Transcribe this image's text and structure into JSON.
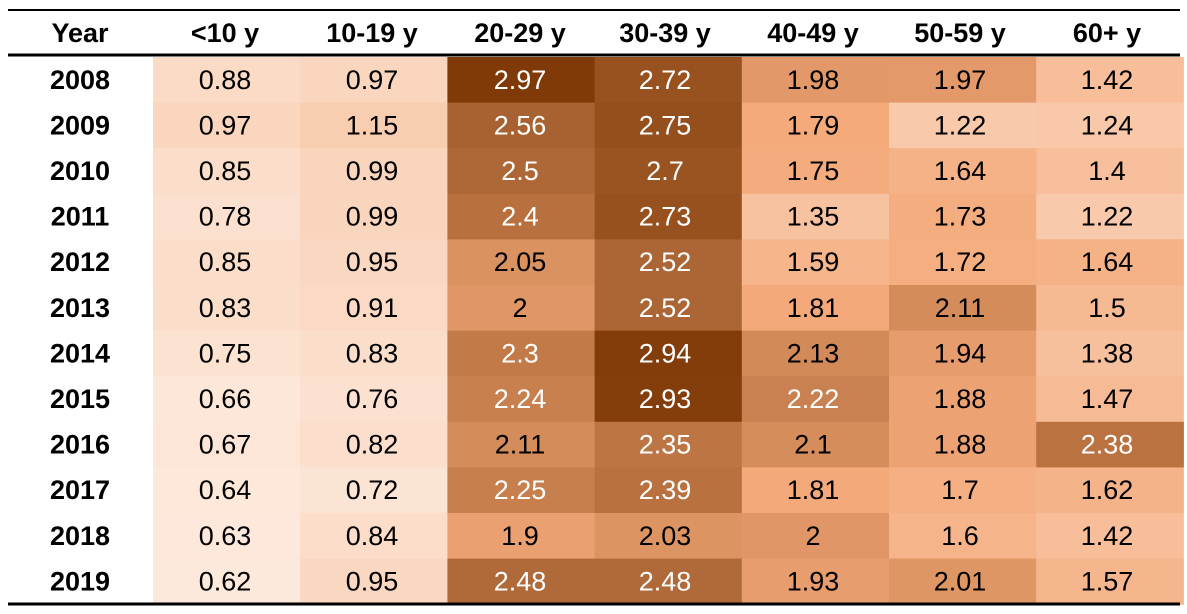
{
  "chart_data": {
    "type": "heatmap",
    "corner_label": "Year",
    "columns": [
      "<10 y",
      "10-19 y",
      "20-29 y",
      "30-39 y",
      "40-49 y",
      "50-59 y",
      "60+ y"
    ],
    "rows": [
      "2008",
      "2009",
      "2010",
      "2011",
      "2012",
      "2013",
      "2014",
      "2015",
      "2016",
      "2017",
      "2018",
      "2019"
    ],
    "values": [
      [
        0.88,
        0.97,
        2.97,
        2.72,
        1.98,
        1.97,
        1.42
      ],
      [
        0.97,
        1.15,
        2.56,
        2.75,
        1.79,
        1.22,
        1.24
      ],
      [
        0.85,
        0.99,
        2.5,
        2.7,
        1.75,
        1.64,
        1.4
      ],
      [
        0.78,
        0.99,
        2.4,
        2.73,
        1.35,
        1.73,
        1.22
      ],
      [
        0.85,
        0.95,
        2.05,
        2.52,
        1.59,
        1.72,
        1.64
      ],
      [
        0.83,
        0.91,
        2,
        2.52,
        1.81,
        2.11,
        1.5
      ],
      [
        0.75,
        0.83,
        2.3,
        2.94,
        2.13,
        1.94,
        1.38
      ],
      [
        0.66,
        0.76,
        2.24,
        2.93,
        2.22,
        1.88,
        1.47
      ],
      [
        0.67,
        0.82,
        2.11,
        2.35,
        2.1,
        1.88,
        2.38
      ],
      [
        0.64,
        0.72,
        2.25,
        2.39,
        1.81,
        1.7,
        1.62
      ],
      [
        0.63,
        0.84,
        1.9,
        2.03,
        2,
        1.6,
        1.42
      ],
      [
        0.62,
        0.95,
        2.48,
        2.48,
        1.93,
        2.01,
        1.57
      ]
    ],
    "color_low": "#FDE9DC",
    "color_high": "#7F3A08",
    "text_color_dark": "#000000",
    "text_color_light": "#FFFFFF"
  }
}
